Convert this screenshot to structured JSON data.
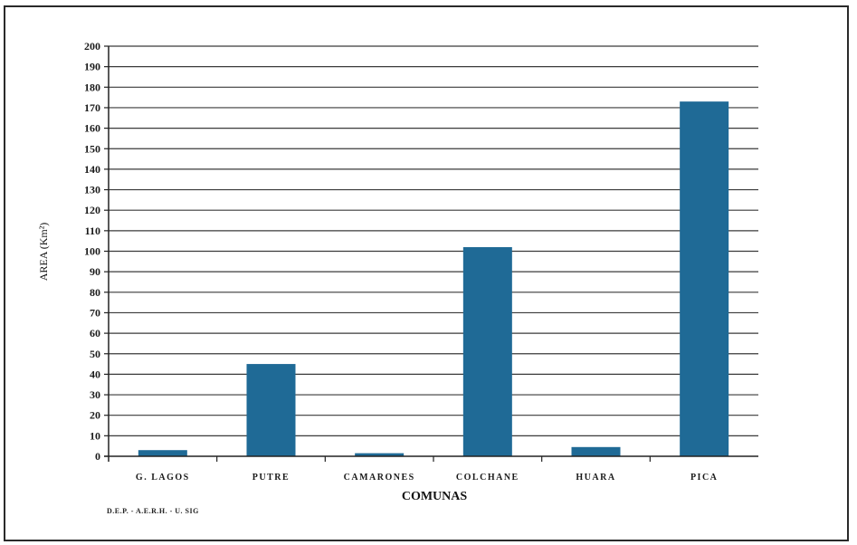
{
  "chart_data": {
    "type": "bar",
    "categories": [
      "G. LAGOS",
      "PUTRE",
      "CAMARONES",
      "COLCHANE",
      "HUARA",
      "PICA"
    ],
    "values": [
      3,
      45,
      1.5,
      102,
      4.5,
      173
    ],
    "xlabel": "COMUNAS",
    "ylabel": "AREA (Km²)",
    "ylim": [
      0,
      200
    ],
    "ytick_step": 10,
    "grid": true,
    "bar_color": "#1f6a96"
  },
  "footnote": "D.E.P. - A.E.R.H. - U. SIG"
}
